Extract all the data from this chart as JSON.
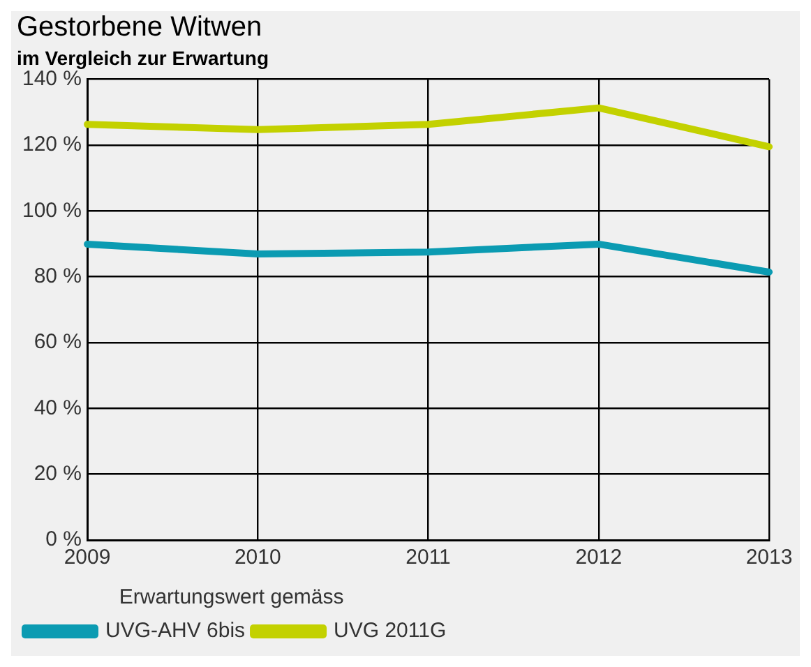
{
  "chart_data": {
    "type": "line",
    "title": "Gestorbene Witwen",
    "subtitle": "im Vergleich zur Erwartung",
    "categories": [
      "2009",
      "2010",
      "2011",
      "2012",
      "2013"
    ],
    "series": [
      {
        "name": "UVG-AHV 6bis",
        "color": "#0b9bb2",
        "values": [
          89.9,
          86.9,
          87.5,
          89.9,
          81.4
        ]
      },
      {
        "name": "UVG 2011G",
        "color": "#c3d100",
        "values": [
          126.3,
          124.7,
          126.3,
          131.3,
          119.5
        ]
      }
    ],
    "ylim": [
      0,
      140
    ],
    "yticks": [
      {
        "value": 0,
        "label": "0 %"
      },
      {
        "value": 20,
        "label": "20 %"
      },
      {
        "value": 40,
        "label": "40 %"
      },
      {
        "value": 60,
        "label": "60 %"
      },
      {
        "value": 80,
        "label": "80 %"
      },
      {
        "value": 100,
        "label": "100 %"
      },
      {
        "value": 120,
        "label": "120 %"
      },
      {
        "value": 140,
        "label": "140 %"
      }
    ],
    "grid": true,
    "legend": "bottom",
    "legend_title": "Erwartungswert gemäss",
    "marker": "none",
    "line_style": "solid"
  }
}
